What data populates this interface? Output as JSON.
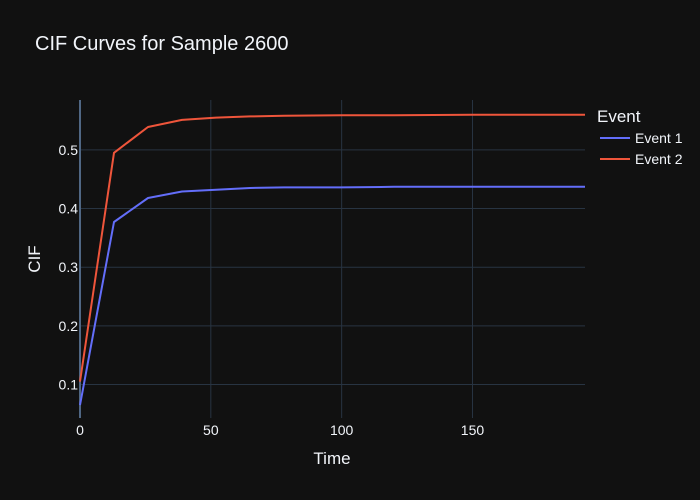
{
  "colors": {
    "background": "#111111",
    "grid": "#283442",
    "axis_line": "#506784",
    "text": "#f2f5fa",
    "series1": "#636efa",
    "series2": "#ef553b"
  },
  "chart_data": {
    "type": "line",
    "title": "CIF Curves for Sample 2600",
    "xlabel": "Time",
    "ylabel": "CIF",
    "xlim": [
      0,
      193
    ],
    "ylim": [
      0.043,
      0.585
    ],
    "x_ticks": [
      0,
      50,
      100,
      150
    ],
    "y_ticks": [
      0.1,
      0.2,
      0.3,
      0.4,
      0.5
    ],
    "grid": true,
    "legend_title": "Event",
    "legend_position": "right",
    "series": [
      {
        "name": "Event 1",
        "color": "#636efa",
        "x": [
          0,
          13,
          26,
          39,
          52,
          65,
          78,
          100,
          120,
          150,
          193
        ],
        "y": [
          0.065,
          0.377,
          0.418,
          0.429,
          0.432,
          0.435,
          0.436,
          0.436,
          0.437,
          0.437,
          0.437
        ]
      },
      {
        "name": "Event 2",
        "color": "#ef553b",
        "x": [
          0,
          13,
          26,
          39,
          52,
          65,
          78,
          100,
          120,
          150,
          193
        ],
        "y": [
          0.105,
          0.495,
          0.539,
          0.551,
          0.555,
          0.557,
          0.558,
          0.559,
          0.559,
          0.56,
          0.56
        ]
      }
    ]
  }
}
